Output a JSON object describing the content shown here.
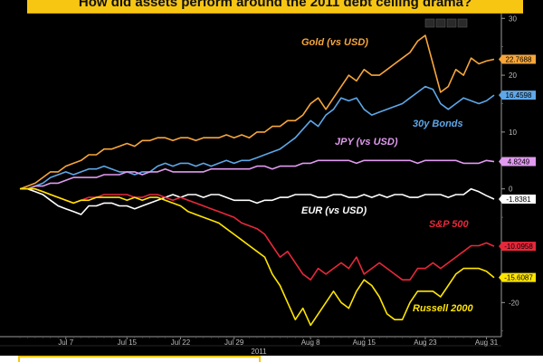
{
  "title": "How did assets perform around the 2011 debt ceiling drama?",
  "window_buttons": [
    "minimize-icon",
    "restore-icon",
    "maximize-icon",
    "close-icon"
  ],
  "chart_data": {
    "type": "line",
    "ylim": [
      -26,
      31
    ],
    "yticks": [
      30,
      20,
      10,
      0,
      -10,
      -20
    ],
    "grid": false,
    "x_labels": [
      {
        "label": "Jul 7",
        "day": 7
      },
      {
        "label": "Jul 15",
        "day": 15
      },
      {
        "label": "Jul 22",
        "day": 22
      },
      {
        "label": "Jul 29",
        "day": 29
      },
      {
        "label": "Aug 8",
        "day": 39
      },
      {
        "label": "Aug 15",
        "day": 46
      },
      {
        "label": "Aug 23",
        "day": 54
      },
      {
        "label": "Aug 31",
        "day": 62
      }
    ],
    "year_label": "2011",
    "x_days": [
      1,
      2,
      3,
      4,
      5,
      6,
      7,
      8,
      9,
      10,
      11,
      12,
      13,
      14,
      15,
      16,
      17,
      18,
      19,
      20,
      21,
      22,
      23,
      24,
      25,
      26,
      27,
      28,
      29,
      30,
      31,
      32,
      33,
      34,
      35,
      36,
      37,
      38,
      39,
      40,
      41,
      42,
      43,
      44,
      45,
      46,
      47,
      48,
      49,
      50,
      51,
      52,
      53,
      54,
      55,
      56,
      57,
      58,
      59,
      60,
      61,
      62,
      63
    ],
    "series": [
      {
        "name": "Gold (vs USD)",
        "color": "#f7a63b",
        "last_value": "22.7688",
        "values": [
          0,
          0.5,
          1,
          2,
          3,
          3,
          4,
          4.5,
          5,
          6,
          6,
          7,
          7,
          7.5,
          8,
          7.5,
          8.5,
          8.5,
          9,
          9,
          8.5,
          9,
          9,
          8.5,
          9,
          9,
          9,
          9.5,
          9,
          9.5,
          9,
          10,
          10,
          11,
          11,
          12,
          12,
          13,
          15,
          16,
          14,
          16,
          18,
          20,
          19,
          21,
          20,
          20,
          21,
          22,
          23,
          24,
          26,
          27,
          22,
          17,
          18,
          21,
          20,
          23,
          22,
          22.5,
          22.8
        ]
      },
      {
        "name": "30y Bonds",
        "color": "#5ea7e8",
        "last_value": "16.4598",
        "values": [
          0,
          0,
          0.5,
          1,
          2,
          2.5,
          3,
          2.5,
          3,
          3.5,
          3.5,
          4,
          3.5,
          3,
          3,
          2.5,
          3,
          3,
          4,
          4.5,
          4,
          4.5,
          4.5,
          4,
          4.5,
          4,
          4.5,
          5,
          4.5,
          5,
          5,
          5.5,
          6,
          6.5,
          7,
          8,
          9,
          10.5,
          12,
          11,
          13,
          14,
          16,
          15.5,
          16,
          14,
          13,
          13.5,
          14,
          14.5,
          15,
          16,
          17,
          18,
          17.5,
          15,
          14,
          15,
          16,
          15.5,
          15,
          15.5,
          16.5
        ]
      },
      {
        "name": "JPY (vs USD)",
        "color": "#e19af0",
        "last_value": "4.8249",
        "values": [
          0,
          0,
          0.5,
          0.5,
          1,
          1,
          1.5,
          2,
          2,
          2,
          2,
          2.5,
          2.5,
          2.5,
          3,
          3,
          2.5,
          3,
          3,
          3.5,
          3,
          3,
          3,
          3,
          3,
          3.5,
          3.5,
          3.5,
          3.5,
          3.5,
          3.5,
          4,
          4,
          3.5,
          4,
          4,
          4,
          4.5,
          4.5,
          5,
          5,
          5,
          5,
          5,
          4.5,
          5,
          5,
          5,
          5,
          5,
          5,
          5,
          4.5,
          5,
          5,
          5,
          5,
          5,
          4.5,
          4.5,
          4.5,
          5,
          4.8
        ]
      },
      {
        "name": "EUR (vs USD)",
        "color": "#ffffff",
        "last_value": "-1.8381",
        "values": [
          0,
          0,
          -0.5,
          -1,
          -2,
          -3,
          -3.5,
          -4,
          -4.5,
          -3,
          -3,
          -2.5,
          -2.5,
          -3,
          -3,
          -3.5,
          -3,
          -2.5,
          -2,
          -1.5,
          -1,
          -1.5,
          -1,
          -1,
          -1.5,
          -1,
          -1,
          -1.5,
          -2,
          -2,
          -2,
          -2.5,
          -2,
          -2,
          -1.5,
          -1.5,
          -1,
          -1,
          -1,
          -1.5,
          -1.5,
          -1,
          -1,
          -1.5,
          -1.5,
          -1,
          -1.5,
          -1,
          -1.5,
          -1,
          -1,
          -1.5,
          -1.5,
          -1,
          -1,
          -1,
          -1.5,
          -1,
          -1,
          0,
          -0.5,
          -1.2,
          -1.8
        ]
      },
      {
        "name": "S&P 500",
        "color": "#e8283a",
        "last_value": "-10.0958",
        "values": [
          0,
          0,
          0,
          -0.5,
          -1,
          -1.5,
          -2,
          -2.5,
          -2,
          -1.5,
          -1.5,
          -1,
          -1,
          -1,
          -1,
          -1.5,
          -1.5,
          -1,
          -1,
          -1.5,
          -2,
          -1.5,
          -2,
          -2.5,
          -3,
          -3.5,
          -4,
          -4.5,
          -5,
          -6,
          -6.5,
          -7,
          -8,
          -10,
          -12,
          -11,
          -13,
          -15,
          -16,
          -14,
          -15,
          -14,
          -13,
          -14,
          -12,
          -15,
          -14,
          -13,
          -14,
          -15,
          -16,
          -16,
          -14,
          -14,
          -13,
          -14,
          -13,
          -12,
          -11,
          -10,
          -10,
          -9.5,
          -10.1
        ]
      },
      {
        "name": "Russell 2000",
        "color": "#ffe500",
        "last_value": "-15.6087",
        "values": [
          0,
          0,
          0,
          -0.5,
          -1,
          -1.5,
          -2,
          -2.5,
          -2,
          -2,
          -1.5,
          -1.5,
          -1.5,
          -1.5,
          -2,
          -1.5,
          -2,
          -1.5,
          -1.5,
          -2,
          -2.5,
          -3,
          -4,
          -4.5,
          -5,
          -5.5,
          -6,
          -7,
          -8,
          -9,
          -10,
          -11,
          -12,
          -15,
          -17,
          -20,
          -23,
          -21,
          -24,
          -22,
          -20,
          -18,
          -20,
          -21,
          -18,
          -16,
          -17,
          -19,
          -22,
          -23,
          -23,
          -20,
          -18,
          -18,
          -18,
          -19,
          -17,
          -15,
          -14,
          -14,
          -14,
          -14.5,
          -15.6
        ]
      }
    ],
    "annotations": [
      {
        "text": "Gold (vs USD)",
        "color": "#f7a63b"
      },
      {
        "text": "30y Bonds",
        "color": "#5ea7e8"
      },
      {
        "text": "JPY (vs USD)",
        "color": "#e19af0"
      },
      {
        "text": "EUR (vs USD)",
        "color": "#ffffff"
      },
      {
        "text": "S&P 500",
        "color": "#e8283a"
      },
      {
        "text": "Russell 2000",
        "color": "#ffe500"
      }
    ]
  }
}
